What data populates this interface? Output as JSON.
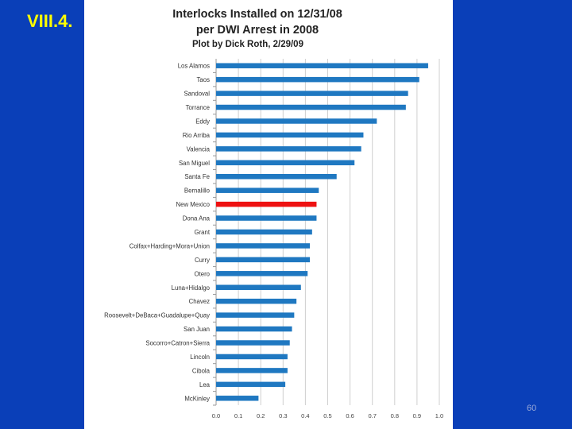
{
  "slide": {
    "label": "VIII.4.",
    "page_number": "60"
  },
  "chart_data": {
    "type": "bar",
    "orientation": "horizontal",
    "title_lines": [
      "Interlocks Installed on 12/31/08",
      "per DWI Arrest in 2008"
    ],
    "subtitle": "Plot by Dick Roth, 2/29/09",
    "xlabel": "",
    "ylabel": "",
    "xlim": [
      0,
      1.0
    ],
    "x_ticks": [
      "0.0",
      "0.1",
      "0.2",
      "0.3",
      "0.4",
      "0.5",
      "0.6",
      "0.7",
      "0.8",
      "0.9",
      "1.0"
    ],
    "grid": "vertical",
    "legend": "none",
    "bar_color": "#1f78c1",
    "highlight_color": "#ee1111",
    "categories": [
      "Los Alamos",
      "Taos",
      "Sandoval",
      "Torrance",
      "Eddy",
      "Rio Arriba",
      "Valencia",
      "San Miguel",
      "Santa Fe",
      "Bernalillo",
      "New Mexico",
      "Dona Ana",
      "Grant",
      "Colfax+Harding+Mora+Union",
      "Curry",
      "Otero",
      "Luna+Hidalgo",
      "Chavez",
      "Roosevelt+DeBaca+Guadalupe+Quay",
      "San Juan",
      "Socorro+Catron+Sierra",
      "Lincoln",
      "Cibola",
      "Lea",
      "McKinley"
    ],
    "values": [
      0.95,
      0.91,
      0.86,
      0.85,
      0.72,
      0.66,
      0.65,
      0.62,
      0.54,
      0.46,
      0.45,
      0.45,
      0.43,
      0.42,
      0.42,
      0.41,
      0.38,
      0.36,
      0.35,
      0.34,
      0.33,
      0.32,
      0.32,
      0.31,
      0.19
    ],
    "highlight": [
      "New Mexico"
    ]
  }
}
